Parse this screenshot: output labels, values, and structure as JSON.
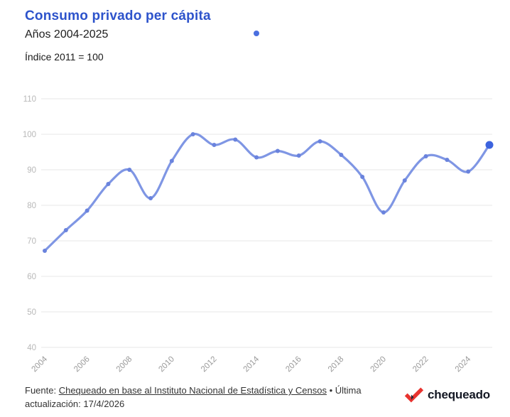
{
  "header": {
    "title": "Consumo privado per cápita",
    "subtitle": "Años 2004-2025",
    "index_note": "Índice 2011 = 100"
  },
  "footer": {
    "source_prefix": "Fuente: ",
    "source_link_text": "Chequeado en base al Instituto Nacional de Estadística y Censos",
    "source_rest": " • Última actualización: 17/4/2026",
    "logo_text": "chequeado"
  },
  "colors": {
    "title": "#2d53cb",
    "line": "#7f96e4",
    "marker": "#6a83dd",
    "last_marker": "#3c63de",
    "legend_dot": "#4a6fe0",
    "grid": "#e7e7e7",
    "y_label": "#b8b8b8",
    "x_label": "#9a9a9a"
  },
  "chart_data": {
    "type": "line",
    "title": "Consumo privado per cápita",
    "subtitle": "Años 2004-2025",
    "note": "Índice 2011 = 100",
    "x": [
      2004,
      2005,
      2006,
      2007,
      2008,
      2009,
      2010,
      2011,
      2012,
      2013,
      2014,
      2015,
      2016,
      2017,
      2018,
      2019,
      2020,
      2021,
      2022,
      2023,
      2024,
      2025
    ],
    "values": [
      67.2,
      73,
      78.5,
      86,
      90,
      82,
      92.5,
      100,
      97,
      98.5,
      93.5,
      95.3,
      94,
      98,
      94.2,
      88,
      78,
      87,
      93.8,
      92.8,
      89.5,
      97
    ],
    "ylim": [
      40,
      110
    ],
    "yticks": [
      40,
      50,
      60,
      70,
      80,
      90,
      100,
      110
    ],
    "xticks": [
      2004,
      2006,
      2008,
      2010,
      2012,
      2014,
      2016,
      2018,
      2020,
      2022,
      2024
    ],
    "grid": true,
    "legend_position": "top",
    "highlight_last_point": true
  }
}
